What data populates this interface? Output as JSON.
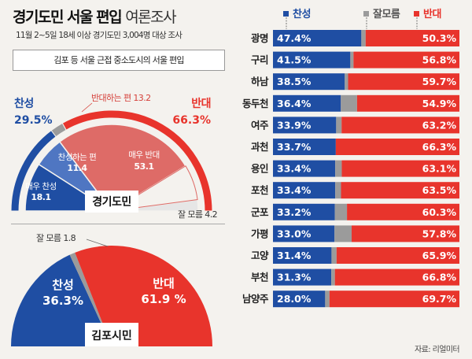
{
  "header": {
    "title_bold": "경기도민 서울 편입",
    "title_light": "여론조사",
    "subtitle": "11월 2~5일 18세 이상 경기도민 3,004명 대상 조사",
    "question": "김포 등 서울 근접 중소도시의 서울 편입",
    "source": "자료: 리얼미터"
  },
  "colors": {
    "blue": "#1f4ea3",
    "blue_light": "#4f76c2",
    "red": "#e8342c",
    "red_light": "#de6b67",
    "gray": "#9b9b9b"
  },
  "chart_data": [
    {
      "type": "pie",
      "subtype": "semicircle",
      "name": "경기도민",
      "outer": [
        {
          "label": "찬성",
          "value": 29.5
        },
        {
          "label": "잘 모름",
          "value": 4.2
        },
        {
          "label": "반대",
          "value": 66.3
        }
      ],
      "inner": [
        {
          "label": "매우 찬성",
          "value": 18.1
        },
        {
          "label": "찬성하는 편",
          "value": 11.4
        },
        {
          "label": "매우 반대",
          "value": 53.1
        },
        {
          "label": "반대하는 편",
          "value": 13.2
        },
        {
          "label": "잘 모름",
          "value": 4.2
        }
      ]
    },
    {
      "type": "pie",
      "subtype": "semicircle",
      "name": "김포시민",
      "segments": [
        {
          "label": "찬성",
          "value": 36.3
        },
        {
          "label": "잘 모름",
          "value": 1.8
        },
        {
          "label": "반대",
          "value": 61.9
        }
      ]
    },
    {
      "type": "bar",
      "orientation": "horizontal",
      "stacked": true,
      "legend": [
        "찬성",
        "잘모름",
        "반대"
      ],
      "categories": [
        "광명",
        "구리",
        "하남",
        "동두천",
        "여주",
        "과천",
        "용인",
        "포천",
        "군포",
        "가평",
        "고양",
        "부천",
        "남양주"
      ],
      "series": [
        {
          "name": "찬성",
          "values": [
            47.4,
            41.5,
            38.5,
            36.4,
            33.9,
            33.7,
            33.4,
            33.4,
            33.2,
            33.0,
            31.4,
            31.3,
            28.0
          ]
        },
        {
          "name": "잘모름",
          "values": [
            2.3,
            1.7,
            1.8,
            8.7,
            2.9,
            0.0,
            3.5,
            3.1,
            6.5,
            9.2,
            2.7,
            1.9,
            2.3
          ]
        },
        {
          "name": "반대",
          "values": [
            50.3,
            56.8,
            59.7,
            54.9,
            63.2,
            66.3,
            63.1,
            63.5,
            60.3,
            57.8,
            65.9,
            66.8,
            69.7
          ]
        }
      ]
    }
  ]
}
